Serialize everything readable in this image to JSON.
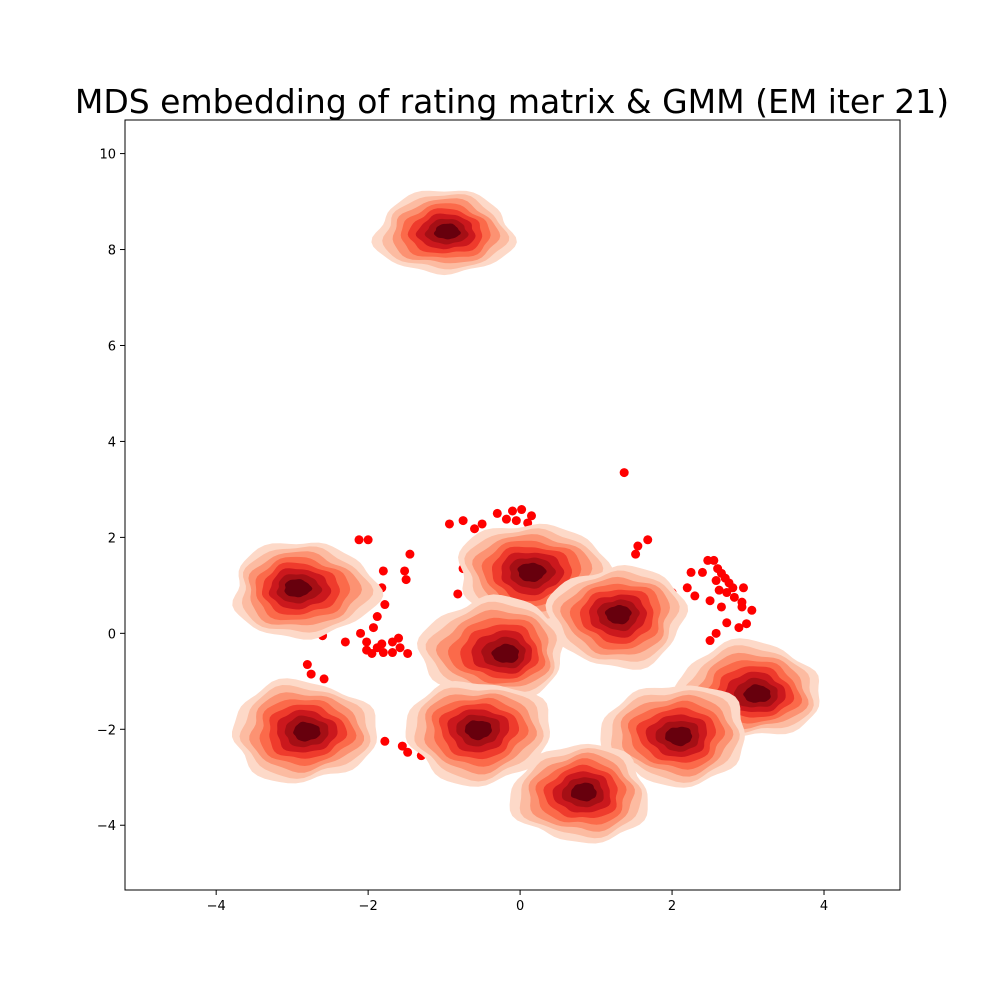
{
  "chart_data": {
    "type": "scatter",
    "title": "MDS embedding of rating matrix & GMM (EM iter 21)",
    "xlabel": "",
    "ylabel": "",
    "xlim": [
      -5.2,
      5.0
    ],
    "ylim": [
      -5.35,
      10.7
    ],
    "xticks": [
      -4,
      -2,
      0,
      2,
      4
    ],
    "yticks": [
      -4,
      -2,
      0,
      2,
      4,
      6,
      8,
      10
    ],
    "xtick_labels": [
      "−4",
      "−2",
      "0",
      "2",
      "4"
    ],
    "ytick_labels": [
      "−4",
      "−2",
      "0",
      "2",
      "4",
      "6",
      "8",
      "10"
    ],
    "grid": false,
    "legend": "none",
    "point_color": "#ff0000",
    "contour_colors": [
      "#fdd9c8",
      "#fcbba1",
      "#fc9272",
      "#fb6a4a",
      "#ef3b2c",
      "#cb181d",
      "#a50f15",
      "#67000d"
    ],
    "points": [
      {
        "x": 1.37,
        "y": 3.35
      },
      {
        "x": -0.93,
        "y": 2.28
      },
      {
        "x": -0.75,
        "y": 2.35
      },
      {
        "x": -0.6,
        "y": 2.18
      },
      {
        "x": -0.5,
        "y": 2.28
      },
      {
        "x": -0.3,
        "y": 2.5
      },
      {
        "x": -0.18,
        "y": 2.38
      },
      {
        "x": -0.1,
        "y": 2.55
      },
      {
        "x": 0.02,
        "y": 2.58
      },
      {
        "x": 0.15,
        "y": 2.45
      },
      {
        "x": -0.05,
        "y": 2.35
      },
      {
        "x": 0.1,
        "y": 2.3
      },
      {
        "x": -2.12,
        "y": 1.95
      },
      {
        "x": -2.0,
        "y": 1.95
      },
      {
        "x": -1.45,
        "y": 1.65
      },
      {
        "x": -1.52,
        "y": 1.3
      },
      {
        "x": -1.5,
        "y": 1.12
      },
      {
        "x": -1.8,
        "y": 1.3
      },
      {
        "x": -1.82,
        "y": 0.95
      },
      {
        "x": -1.78,
        "y": 0.6
      },
      {
        "x": -1.88,
        "y": 0.35
      },
      {
        "x": -1.93,
        "y": 0.12
      },
      {
        "x": -2.02,
        "y": -0.18
      },
      {
        "x": -2.1,
        "y": 0.0
      },
      {
        "x": -1.82,
        "y": -0.22
      },
      {
        "x": -1.68,
        "y": -0.18
      },
      {
        "x": -1.6,
        "y": -0.1
      },
      {
        "x": -1.58,
        "y": -0.3
      },
      {
        "x": -1.68,
        "y": -0.4
      },
      {
        "x": -1.8,
        "y": -0.4
      },
      {
        "x": -1.88,
        "y": -0.3
      },
      {
        "x": -1.95,
        "y": -0.42
      },
      {
        "x": -2.02,
        "y": -0.35
      },
      {
        "x": -1.48,
        "y": -0.42
      },
      {
        "x": -2.3,
        "y": -0.18
      },
      {
        "x": -2.6,
        "y": -0.05
      },
      {
        "x": -2.8,
        "y": -0.65
      },
      {
        "x": -2.75,
        "y": -0.85
      },
      {
        "x": -2.58,
        "y": -0.95
      },
      {
        "x": 1.52,
        "y": 1.65
      },
      {
        "x": 1.55,
        "y": 1.82
      },
      {
        "x": 1.68,
        "y": 1.95
      },
      {
        "x": 1.8,
        "y": 1.1
      },
      {
        "x": 1.9,
        "y": 0.95
      },
      {
        "x": 2.0,
        "y": 0.85
      },
      {
        "x": 2.2,
        "y": 0.95
      },
      {
        "x": 2.25,
        "y": 1.27
      },
      {
        "x": 2.4,
        "y": 1.27
      },
      {
        "x": 2.47,
        "y": 1.52
      },
      {
        "x": 2.55,
        "y": 1.52
      },
      {
        "x": 2.6,
        "y": 1.35
      },
      {
        "x": 2.65,
        "y": 1.25
      },
      {
        "x": 2.7,
        "y": 1.15
      },
      {
        "x": 2.75,
        "y": 1.05
      },
      {
        "x": 2.8,
        "y": 0.95
      },
      {
        "x": 2.72,
        "y": 0.85
      },
      {
        "x": 2.62,
        "y": 0.9
      },
      {
        "x": 2.58,
        "y": 1.1
      },
      {
        "x": 2.5,
        "y": 0.68
      },
      {
        "x": 2.65,
        "y": 0.55
      },
      {
        "x": 2.82,
        "y": 0.75
      },
      {
        "x": 2.92,
        "y": 0.65
      },
      {
        "x": 2.94,
        "y": 0.95
      },
      {
        "x": 2.92,
        "y": 0.55
      },
      {
        "x": 3.05,
        "y": 0.48
      },
      {
        "x": 2.98,
        "y": 0.2
      },
      {
        "x": 2.88,
        "y": 0.12
      },
      {
        "x": 2.72,
        "y": 0.22
      },
      {
        "x": 2.58,
        "y": 0.0
      },
      {
        "x": 2.5,
        "y": -0.15
      },
      {
        "x": 2.3,
        "y": 0.78
      },
      {
        "x": -1.55,
        "y": -2.35
      },
      {
        "x": -1.48,
        "y": -2.48
      },
      {
        "x": -1.3,
        "y": -2.55
      },
      {
        "x": -1.0,
        "y": -2.65
      },
      {
        "x": -1.78,
        "y": -2.25
      },
      {
        "x": -0.75,
        "y": 1.35
      },
      {
        "x": -0.82,
        "y": 0.82
      }
    ],
    "components": [
      {
        "cx": -1.0,
        "cy": 8.35,
        "sx": 0.9,
        "sy": 0.87,
        "density_peak": [
          -0.95,
          8.38
        ]
      },
      {
        "cx": -2.85,
        "cy": 0.9,
        "sx": 0.95,
        "sy": 1.0,
        "density_peak": [
          -2.95,
          0.95
        ]
      },
      {
        "cx": 0.15,
        "cy": 1.25,
        "sx": 0.98,
        "sy": 1.05,
        "density_peak": [
          0.15,
          1.28
        ]
      },
      {
        "cx": 1.28,
        "cy": 0.35,
        "sx": 0.9,
        "sy": 1.05,
        "density_peak": [
          1.3,
          0.4
        ]
      },
      {
        "cx": -0.35,
        "cy": -0.32,
        "sx": 0.95,
        "sy": 1.05,
        "density_peak": [
          -0.15,
          -0.45
        ]
      },
      {
        "cx": 3.0,
        "cy": -1.2,
        "sx": 0.95,
        "sy": 1.0,
        "density_peak": [
          3.15,
          -1.28
        ]
      },
      {
        "cx": -2.85,
        "cy": -2.05,
        "sx": 0.95,
        "sy": 1.05,
        "density_peak": [
          -2.8,
          -2.05
        ]
      },
      {
        "cx": -0.55,
        "cy": -2.05,
        "sx": 0.95,
        "sy": 1.07,
        "density_peak": [
          -0.55,
          -2.0
        ]
      },
      {
        "cx": 2.05,
        "cy": -2.1,
        "sx": 0.95,
        "sy": 1.05,
        "density_peak": [
          2.1,
          -2.15
        ]
      },
      {
        "cx": 0.8,
        "cy": -3.35,
        "sx": 0.9,
        "sy": 1.02,
        "density_peak": [
          0.85,
          -3.3
        ]
      }
    ]
  }
}
